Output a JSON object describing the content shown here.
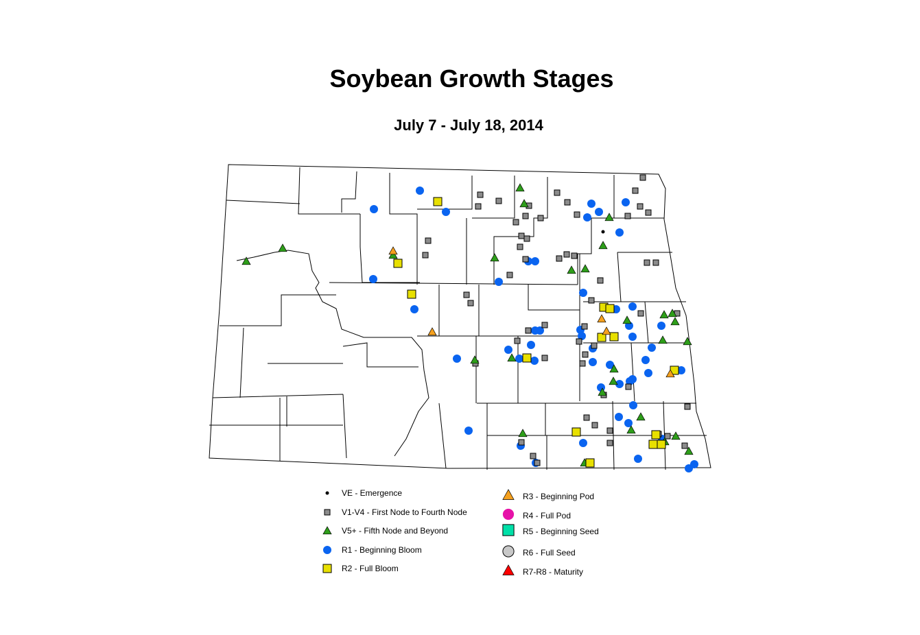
{
  "title": "Soybean Growth Stages",
  "subtitle": "July 7 - July 18, 2014",
  "legend": [
    {
      "code": "VE",
      "label": "VE - Emergence",
      "marker": "dot",
      "color": "#000000"
    },
    {
      "code": "V1V4",
      "label": "V1-V4 - First Node to Fourth Node",
      "marker": "square",
      "color": "#8c8c8c"
    },
    {
      "code": "V5",
      "label": "V5+ - Fifth Node and Beyond",
      "marker": "triangle",
      "color": "#2e9e1a"
    },
    {
      "code": "R1",
      "label": "R1 - Beginning Bloom",
      "marker": "circle",
      "color": "#0a64f0"
    },
    {
      "code": "R2",
      "label": "R2 - Full Bloom",
      "marker": "square",
      "color": "#e8e000"
    },
    {
      "code": "R3",
      "label": "R3 - Beginning Pod",
      "marker": "triangle",
      "color": "#f5a01e"
    },
    {
      "code": "R4",
      "label": "R4 - Full Pod",
      "marker": "circle",
      "color": "#e612a8"
    },
    {
      "code": "R5",
      "label": "R5 - Beginning Seed",
      "marker": "square",
      "color": "#00e0a8"
    },
    {
      "code": "R6",
      "label": "R6 - Full Seed",
      "marker": "circle",
      "color": "#c8c8c8"
    },
    {
      "code": "R7R8",
      "label": "R7-R8 - Maturity",
      "marker": "triangle",
      "color": "#ff0000"
    }
  ]
}
